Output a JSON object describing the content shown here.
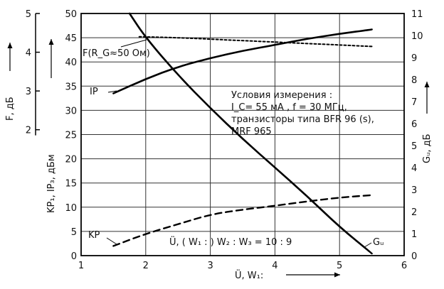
{
  "chart_data": {
    "type": "line",
    "x_axis": {
      "range": [
        1,
        6
      ],
      "ticks": [
        1,
        2,
        3,
        4,
        5,
        6
      ],
      "label": "Ü, W₁:"
    },
    "y_left_primary": {
      "range": [
        0,
        50
      ],
      "ticks": [
        0,
        5,
        10,
        15,
        20,
        25,
        30,
        35,
        40,
        45,
        50
      ],
      "label": "KP₁, IP₃, дБм"
    },
    "y_left_secondary": {
      "ticks": [
        {
          "label": "2",
          "at_primary": 26
        },
        {
          "label": "3",
          "at_primary": 34
        },
        {
          "label": "4",
          "at_primary": 42
        },
        {
          "label": "5",
          "at_primary": 50
        }
      ],
      "label": "F, дБ"
    },
    "y_right": {
      "range": [
        0,
        11
      ],
      "ticks": [
        0,
        1,
        2,
        3,
        4,
        5,
        6,
        7,
        8,
        9,
        10,
        11
      ],
      "label": "Gᵤ, дБ"
    },
    "grid": true,
    "series": [
      {
        "name": "IP",
        "style": "solid",
        "axis": "left",
        "points": [
          [
            1.5,
            33.5
          ],
          [
            2.0,
            36.5
          ],
          [
            2.5,
            39.0
          ],
          [
            3.0,
            40.8
          ],
          [
            3.5,
            42.3
          ],
          [
            4.0,
            43.5
          ],
          [
            4.5,
            44.8
          ],
          [
            5.0,
            45.8
          ],
          [
            5.5,
            46.7
          ]
        ]
      },
      {
        "name": "F(R_G≈50 Ом)",
        "style": "dotted",
        "axis": "left",
        "points": [
          [
            1.9,
            45.2
          ],
          [
            2.5,
            45.0
          ],
          [
            3.0,
            44.7
          ],
          [
            3.5,
            44.4
          ],
          [
            4.0,
            44.1
          ],
          [
            4.5,
            43.8
          ],
          [
            5.0,
            43.5
          ],
          [
            5.5,
            43.2
          ]
        ]
      },
      {
        "name": "KP",
        "style": "dashed",
        "axis": "left",
        "points": [
          [
            1.5,
            2.0
          ],
          [
            2.0,
            4.5
          ],
          [
            2.5,
            6.5
          ],
          [
            3.0,
            8.5
          ],
          [
            3.5,
            9.5
          ],
          [
            4.0,
            10.3
          ],
          [
            4.5,
            11.2
          ],
          [
            5.0,
            12.0
          ],
          [
            5.5,
            12.5
          ]
        ]
      },
      {
        "name": "Gᵤ",
        "style": "solid",
        "axis": "right",
        "points": [
          [
            1.75,
            11.0
          ],
          [
            2.0,
            9.9
          ],
          [
            2.5,
            8.2
          ],
          [
            3.0,
            6.7
          ],
          [
            3.5,
            5.3
          ],
          [
            4.0,
            4.0
          ],
          [
            4.5,
            2.7
          ],
          [
            5.0,
            1.3
          ],
          [
            5.5,
            0.1
          ]
        ]
      }
    ],
    "annotation": [
      "Условия измерения :",
      "I_C= 55 мА ,  f = 30 МГц,",
      "транзисторы типа  BFR 96 (s),",
      "MRF  965"
    ],
    "ratio_label": "Ü, ( W₁ : ) W₂ : W₃  =  10 : 9"
  }
}
